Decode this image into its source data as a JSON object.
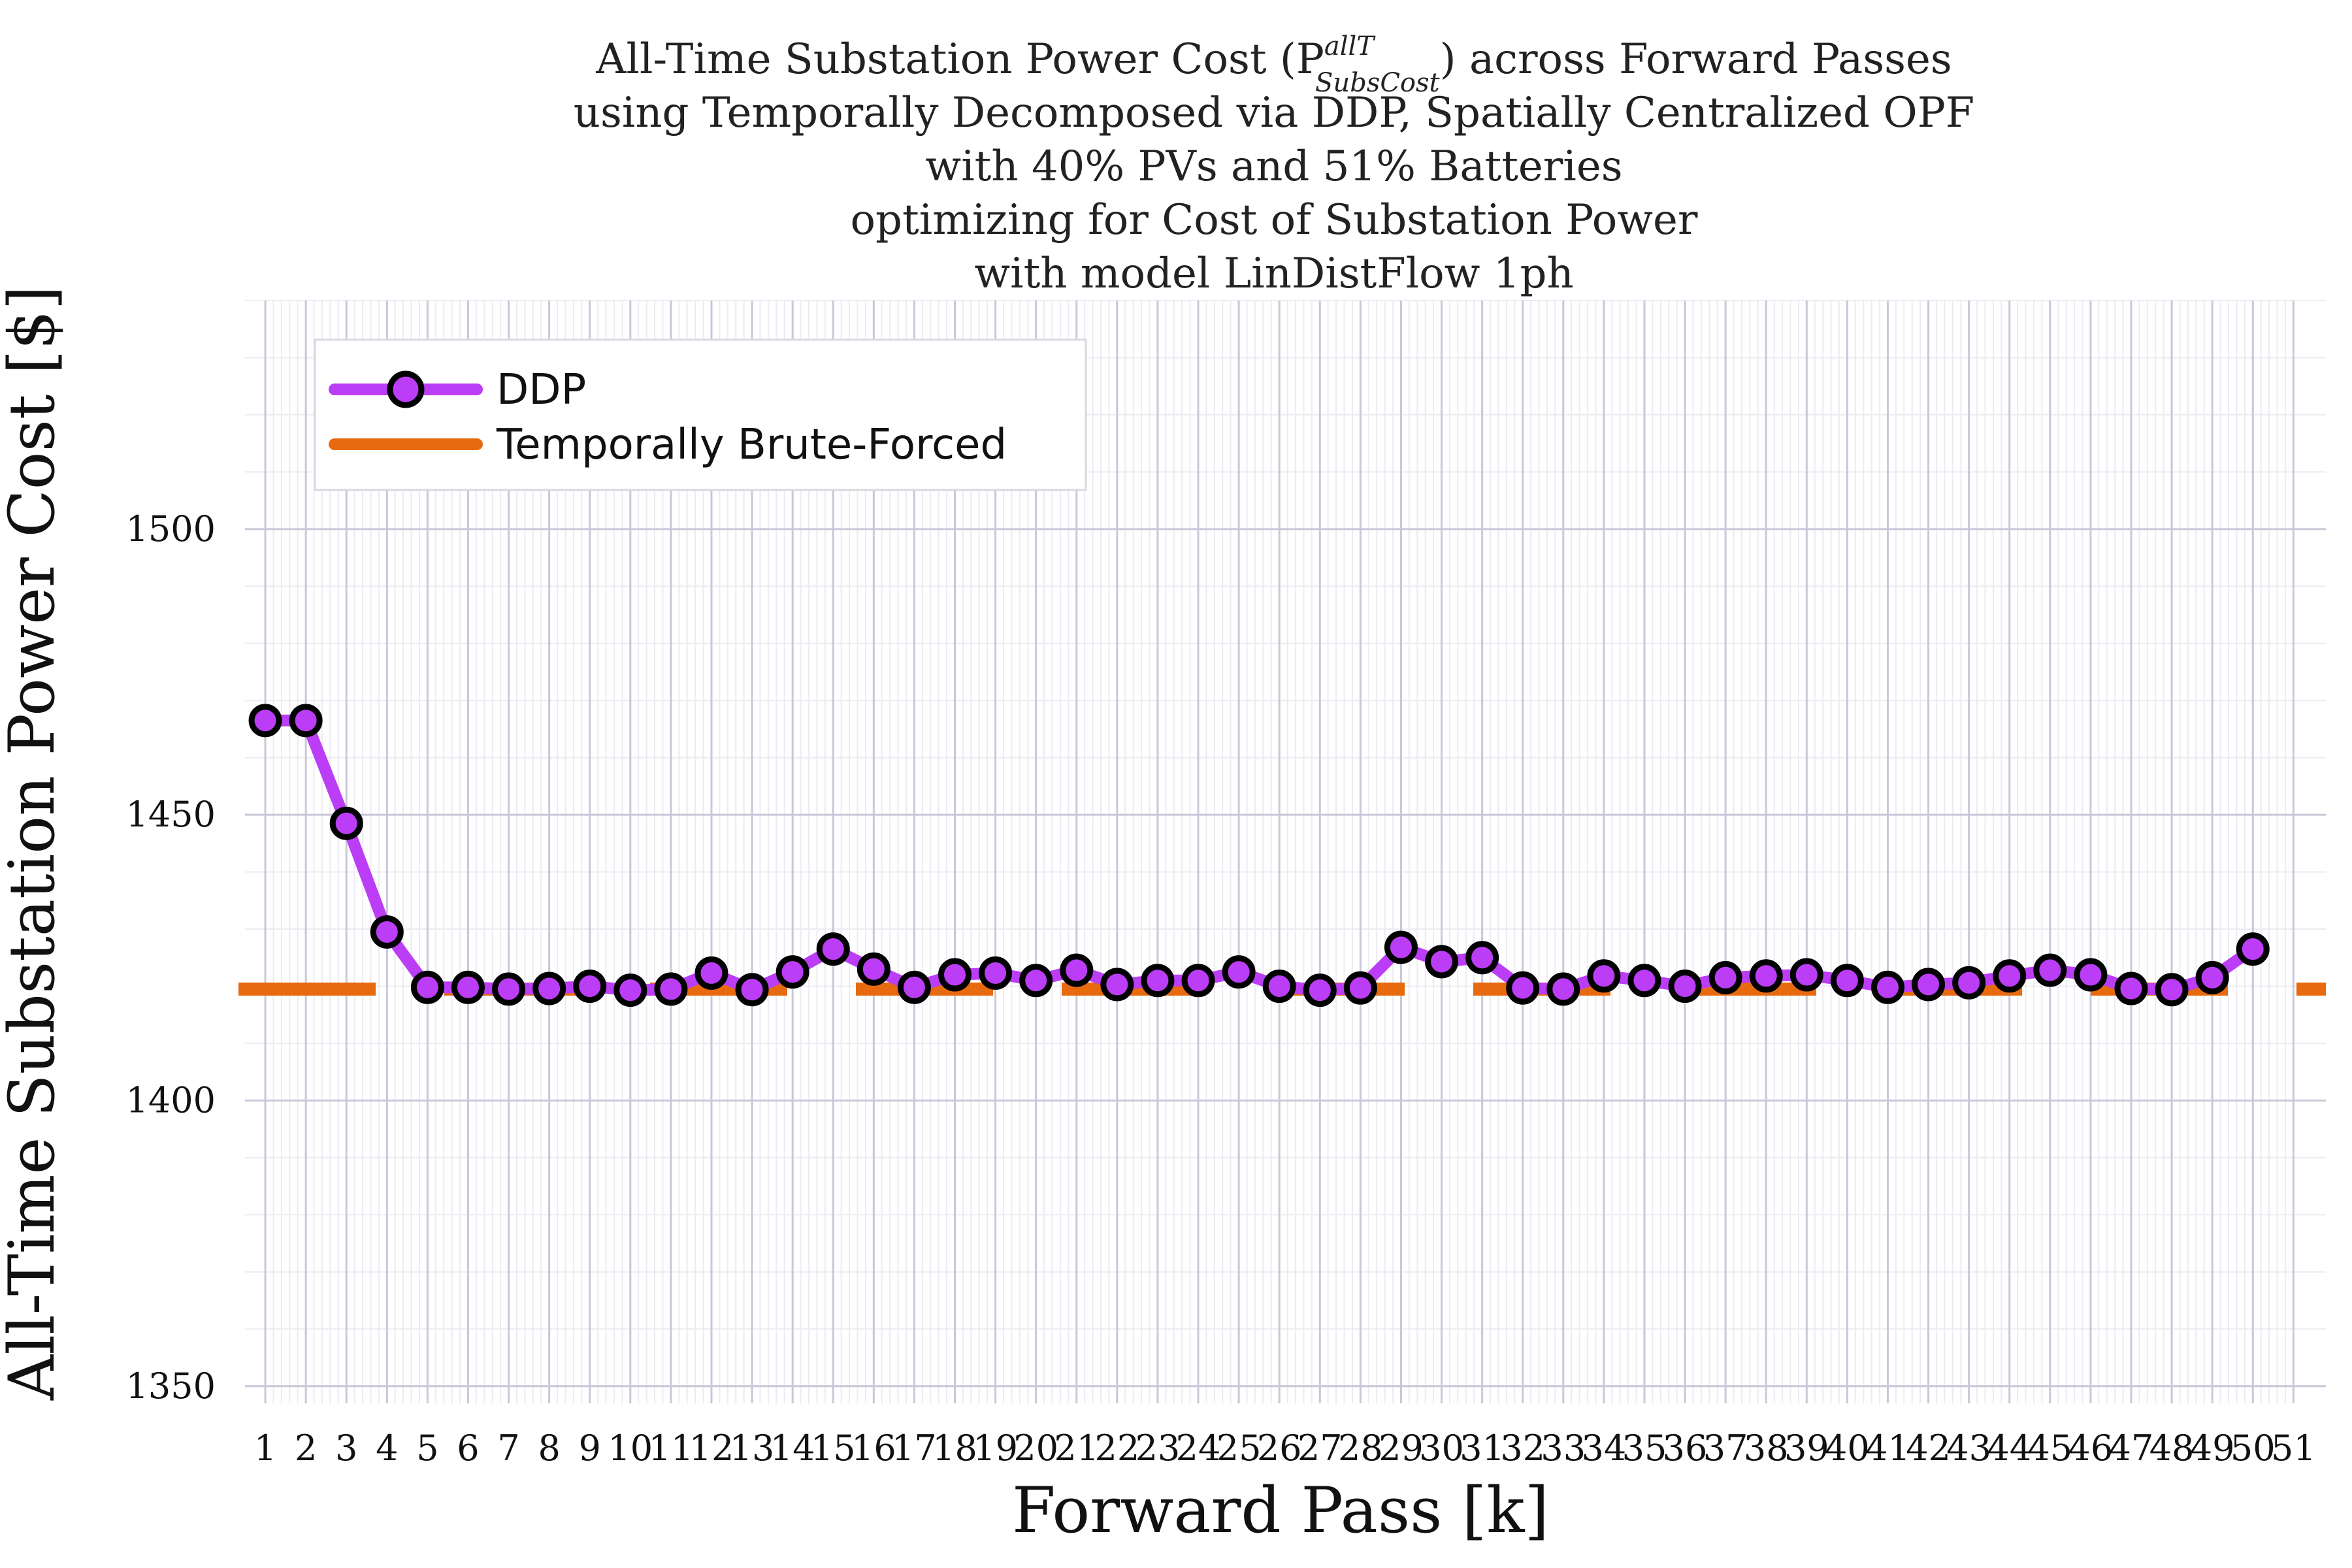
{
  "chart_data": {
    "type": "line",
    "title_lines": [
      "All-Time Substation Power Cost (P",
      "using Temporally Decomposed via DDP, Spatially Centralized OPF",
      "with 40% PVs and 51% Batteries",
      "optimizing for Cost of Substation Power",
      "with model LinDistFlow 1ph"
    ],
    "title_symbol_sup": "allT",
    "title_symbol_sub": "SubsCost",
    "title_line1_tail": ") across Forward Passes",
    "xlabel": "Forward Pass [k]",
    "ylabel": "All-Time Substation Power Cost [$]",
    "xlim": [
      0.5,
      51.8
    ],
    "ylim": [
      1347,
      1540
    ],
    "x_ticks": [
      1,
      2,
      3,
      4,
      5,
      6,
      7,
      8,
      9,
      10,
      11,
      12,
      13,
      14,
      15,
      16,
      17,
      18,
      19,
      20,
      21,
      22,
      23,
      24,
      25,
      26,
      27,
      28,
      29,
      30,
      31,
      32,
      33,
      34,
      35,
      36,
      37,
      38,
      39,
      40,
      41,
      42,
      43,
      44,
      45,
      46,
      47,
      48,
      49,
      50,
      51
    ],
    "y_ticks": [
      1350,
      1400,
      1450,
      1500
    ],
    "grid": true,
    "legend_position": "top-left",
    "series": [
      {
        "name": "DDP",
        "color": "#bb3df5",
        "x": [
          1,
          2,
          3,
          4,
          5,
          6,
          7,
          8,
          9,
          10,
          11,
          12,
          13,
          14,
          15,
          16,
          17,
          18,
          19,
          20,
          21,
          22,
          23,
          24,
          25,
          26,
          27,
          28,
          29,
          30,
          31,
          32,
          33,
          34,
          35,
          36,
          37,
          38,
          39,
          40,
          41,
          42,
          43,
          44,
          45,
          46,
          47,
          48,
          49,
          50
        ],
        "values": [
          1466.5,
          1466.5,
          1448.5,
          1429.5,
          1419.8,
          1419.8,
          1419.5,
          1419.6,
          1420.0,
          1419.3,
          1419.5,
          1422.3,
          1419.4,
          1422.5,
          1426.5,
          1423.0,
          1419.8,
          1422.0,
          1422.3,
          1421.0,
          1422.8,
          1420.3,
          1421.0,
          1421.0,
          1422.5,
          1420.0,
          1419.3,
          1419.7,
          1426.8,
          1424.3,
          1425.0,
          1419.7,
          1419.5,
          1421.8,
          1421.0,
          1420.0,
          1421.5,
          1421.8,
          1422.0,
          1421.0,
          1419.8,
          1420.3,
          1420.6,
          1421.8,
          1422.8,
          1422.0,
          1419.6,
          1419.4,
          1421.5,
          1426.5
        ]
      },
      {
        "name": "Temporally Brute-Forced",
        "color": "#e86a0f",
        "style": "dashed",
        "value": 1419.5
      }
    ]
  }
}
